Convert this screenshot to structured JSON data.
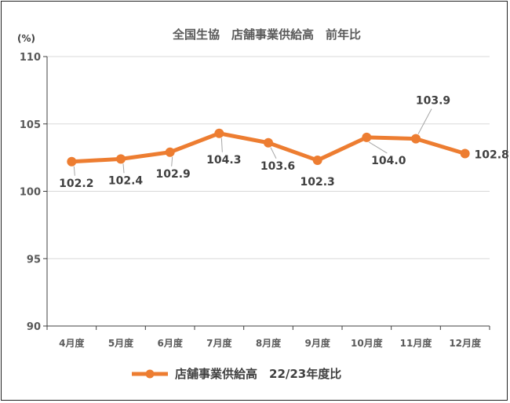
{
  "chart_data": {
    "type": "line",
    "title": "全国生協　店舗事業供給高　前年比",
    "unit_label": "(%)",
    "categories": [
      "4月度",
      "5月度",
      "6月度",
      "7月度",
      "8月度",
      "9月度",
      "10月度",
      "11月度",
      "12月度"
    ],
    "series": [
      {
        "name": "店舗事業供給高　22/23年度比",
        "values": [
          102.2,
          102.4,
          102.9,
          104.3,
          103.6,
          102.3,
          104.0,
          103.9,
          102.8
        ],
        "labels": [
          "102.2",
          "102.4",
          "102.9",
          "104.3",
          "103.6",
          "102.3",
          "104.0",
          "103.9",
          "102.8"
        ],
        "color": "#ED7D31"
      }
    ],
    "ylim": [
      90,
      110
    ],
    "yticks": [
      "90",
      "95",
      "100",
      "105",
      "110"
    ],
    "grid": true,
    "legend_position": "bottom"
  },
  "colors": {
    "line": "#ED7D31",
    "grid": "#D9D9D9",
    "axis": "#404040",
    "leader": "#A6A6A6"
  }
}
